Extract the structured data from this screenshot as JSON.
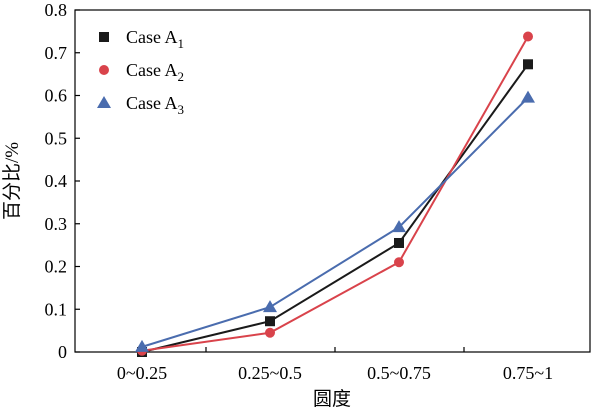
{
  "chart_data": {
    "type": "line",
    "categories": [
      "0~0.25",
      "0.25~0.5",
      "0.5~0.75",
      "0.75~1"
    ],
    "xlabel": "圆度",
    "ylabel": "百分比/%",
    "ylim": [
      0,
      0.8
    ],
    "yticks": [
      "0",
      "0.1",
      "0.2",
      "0.3",
      "0.4",
      "0.5",
      "0.6",
      "0.7",
      "0.8"
    ],
    "grid": false,
    "legend_position": "top-left",
    "series": [
      {
        "name": "Case A",
        "subscript": "1",
        "marker": "square",
        "color": "#1a1a1a",
        "values": [
          0.0,
          0.072,
          0.255,
          0.673
        ]
      },
      {
        "name": "Case A",
        "subscript": "2",
        "marker": "circle",
        "color": "#d9434b",
        "values": [
          0.003,
          0.045,
          0.21,
          0.738
        ]
      },
      {
        "name": "Case A",
        "subscript": "3",
        "marker": "triangle",
        "color": "#4a6cae",
        "values": [
          0.012,
          0.105,
          0.292,
          0.595
        ]
      }
    ]
  }
}
